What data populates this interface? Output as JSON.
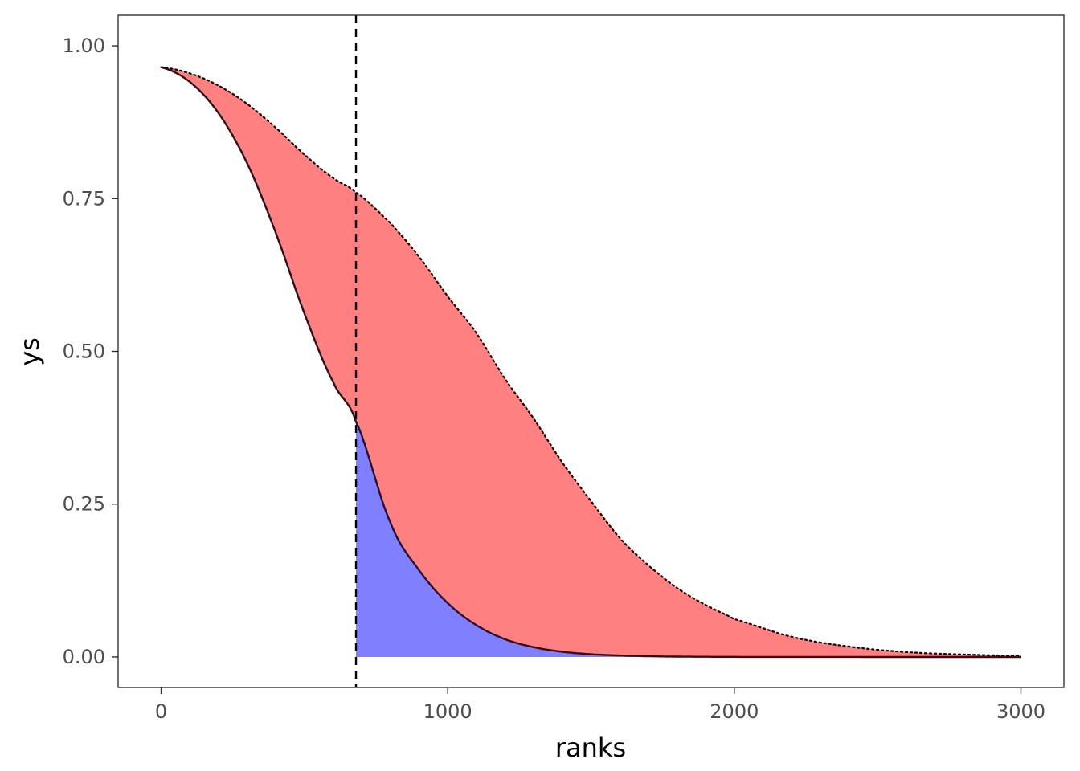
{
  "chart_data": {
    "type": "area",
    "xlabel": "ranks",
    "ylabel": "ys",
    "xlim": [
      -150,
      3150
    ],
    "ylim": [
      -0.05,
      1.05
    ],
    "x_ticks": [
      0,
      1000,
      2000,
      3000
    ],
    "x_tick_labels": [
      "0",
      "1000",
      "2000",
      "3000"
    ],
    "y_ticks": [
      0,
      0.25,
      0.5,
      0.75,
      1.0
    ],
    "y_tick_labels": [
      "0.00",
      "0.25",
      "0.50",
      "0.75",
      "1.00"
    ],
    "grid": false,
    "cutoff_rank": 680,
    "x": [
      0,
      100,
      200,
      300,
      400,
      500,
      600,
      680,
      800,
      900,
      1000,
      1100,
      1200,
      1300,
      1400,
      1500,
      1600,
      1700,
      1800,
      1900,
      2000,
      2200,
      2400,
      2600,
      2800,
      3000
    ],
    "series": [
      {
        "values": [
          0.965,
          0.941,
          0.89,
          0.808,
          0.694,
          0.562,
          0.45,
          0.385,
          0.22,
          0.142,
          0.088,
          0.052,
          0.029,
          0.016,
          0.0085,
          0.0045,
          0.0024,
          0.0012,
          0.0006,
          0.0003,
          0.00015,
          4e-05,
          1e-05,
          0.0,
          0.0,
          0.0
        ],
        "line_style": "solid",
        "line_color": "#3b0a14"
      },
      {
        "values": [
          0.965,
          0.955,
          0.935,
          0.905,
          0.866,
          0.822,
          0.784,
          0.76,
          0.71,
          0.655,
          0.59,
          0.53,
          0.455,
          0.39,
          0.318,
          0.255,
          0.195,
          0.15,
          0.113,
          0.085,
          0.062,
          0.033,
          0.017,
          0.008,
          0.004,
          0.002
        ],
        "line_style": "dotted",
        "line_color": "#000000"
      }
    ],
    "fills": {
      "between_curves_color": "#ff8080",
      "below_lower_after_cutoff_color": "#8080ff"
    }
  }
}
